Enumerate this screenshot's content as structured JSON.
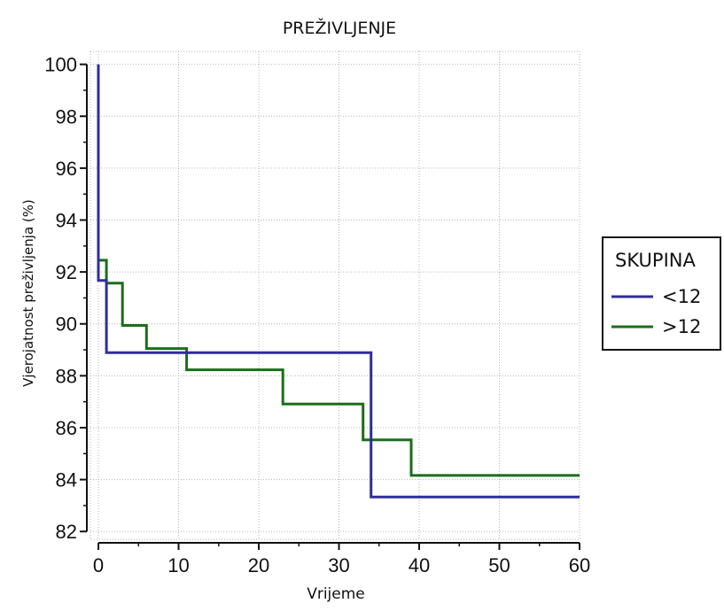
{
  "chart_data": {
    "type": "line",
    "step": true,
    "title": "PREŽIVLJENJE",
    "xlabel": "Vrijeme",
    "ylabel": "Vjerojatnost preživljenja (%)",
    "xlim": [
      -1,
      60
    ],
    "ylim": [
      81.7,
      100.5
    ],
    "xticks": [
      0,
      10,
      20,
      30,
      40,
      50,
      60
    ],
    "yticks": [
      82,
      84,
      86,
      88,
      90,
      92,
      94,
      96,
      98,
      100
    ],
    "grid": true,
    "legend": {
      "title": "SKUPINA",
      "position": "right"
    },
    "series": [
      {
        "name": "<12",
        "color": "#2e2e9a",
        "points": [
          [
            0,
            100
          ],
          [
            0,
            91.67
          ],
          [
            1,
            91.67
          ],
          [
            1,
            88.89
          ],
          [
            34,
            88.89
          ],
          [
            34,
            83.33
          ],
          [
            60,
            83.33
          ]
        ]
      },
      {
        "name": ">12",
        "color": "#1a6e1a",
        "points": [
          [
            0,
            100
          ],
          [
            0,
            92.45
          ],
          [
            1,
            92.45
          ],
          [
            1,
            91.57
          ],
          [
            3,
            91.57
          ],
          [
            3,
            89.94
          ],
          [
            6,
            89.94
          ],
          [
            6,
            89.05
          ],
          [
            11,
            89.05
          ],
          [
            11,
            88.23
          ],
          [
            23,
            88.23
          ],
          [
            23,
            86.91
          ],
          [
            33,
            86.91
          ],
          [
            33,
            85.53
          ],
          [
            39,
            85.53
          ],
          [
            39,
            84.16
          ],
          [
            60,
            84.16
          ]
        ]
      }
    ]
  }
}
